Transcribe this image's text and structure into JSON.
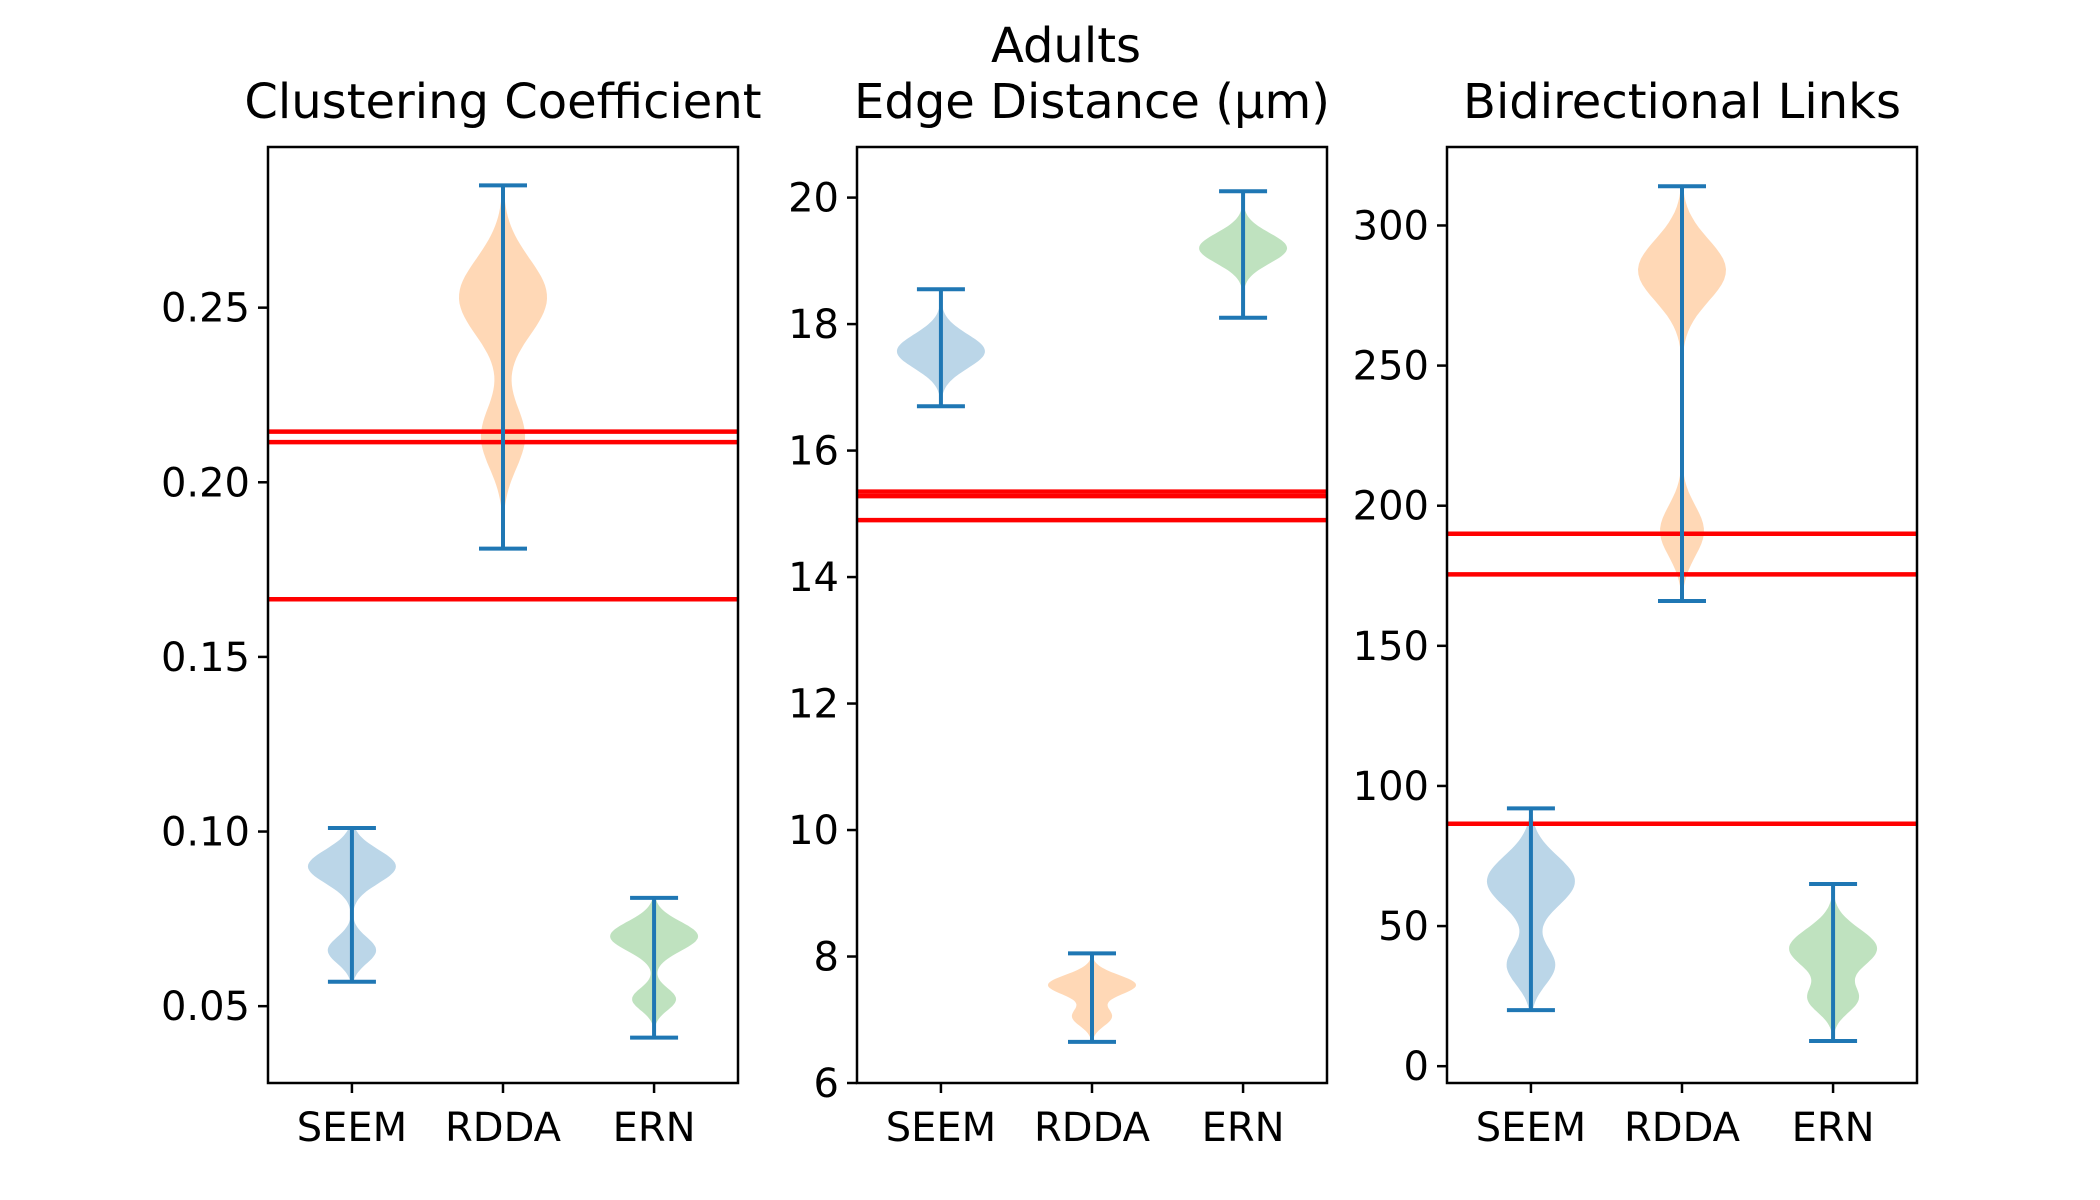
{
  "suptitle": "Adults",
  "colors": {
    "seem": "#1f77b4",
    "rdda": "#ff7f0e",
    "ern": "#2ca02c",
    "whisker": "#1f77b4",
    "reference": "#ff0000"
  },
  "chart_data": [
    {
      "type": "violin",
      "title": "Clustering Coefficient",
      "categories": [
        "SEEM",
        "RDDA",
        "ERN"
      ],
      "ylim": [
        0.028,
        0.296
      ],
      "yticks": [
        0.05,
        0.1,
        0.15,
        0.2,
        0.25
      ],
      "ytick_labels": [
        "0.05",
        "0.10",
        "0.15",
        "0.20",
        "0.25"
      ],
      "violins": [
        {
          "name": "SEEM",
          "min": 0.057,
          "max": 0.101,
          "mode_centers": [
            0.09,
            0.066
          ],
          "mode_widths": [
            0.0048,
            0.0038
          ],
          "mode_weights": [
            1.0,
            0.55
          ]
        },
        {
          "name": "RDDA",
          "min": 0.181,
          "max": 0.285,
          "mode_centers": [
            0.253,
            0.213
          ],
          "mode_widths": [
            0.011,
            0.009
          ],
          "mode_weights": [
            1.0,
            0.5
          ]
        },
        {
          "name": "ERN",
          "min": 0.041,
          "max": 0.081,
          "mode_centers": [
            0.07,
            0.052
          ],
          "mode_widths": [
            0.0042,
            0.0032
          ],
          "mode_weights": [
            1.0,
            0.5
          ]
        }
      ],
      "reference_lines": [
        0.2145,
        0.2115,
        0.1665
      ]
    },
    {
      "type": "violin",
      "title": "Edge Distance (μm)",
      "categories": [
        "SEEM",
        "RDDA",
        "ERN"
      ],
      "ylim": [
        6.0,
        20.8
      ],
      "yticks": [
        6,
        8,
        10,
        12,
        14,
        16,
        18,
        20
      ],
      "ytick_labels": [
        "6",
        "8",
        "10",
        "12",
        "14",
        "16",
        "18",
        "20"
      ],
      "violins": [
        {
          "name": "SEEM",
          "min": 16.7,
          "max": 18.55,
          "mode_centers": [
            17.57
          ],
          "mode_widths": [
            0.27
          ],
          "mode_weights": [
            1.0
          ]
        },
        {
          "name": "RDDA",
          "min": 6.65,
          "max": 8.05,
          "mode_centers": [
            7.55,
            7.05
          ],
          "mode_widths": [
            0.16,
            0.15
          ],
          "mode_weights": [
            1.0,
            0.45
          ]
        },
        {
          "name": "ERN",
          "min": 18.1,
          "max": 20.1,
          "mode_centers": [
            19.2
          ],
          "mode_widths": [
            0.24
          ],
          "mode_weights": [
            1.0
          ]
        }
      ],
      "reference_lines": [
        15.35,
        15.28,
        14.9
      ]
    },
    {
      "type": "violin",
      "title": "Bidirectional Links",
      "categories": [
        "SEEM",
        "RDDA",
        "ERN"
      ],
      "ylim": [
        -6,
        328
      ],
      "yticks": [
        0,
        50,
        100,
        150,
        200,
        250,
        300
      ],
      "ytick_labels": [
        "0",
        "50",
        "100",
        "150",
        "200",
        "250",
        "300"
      ],
      "violins": [
        {
          "name": "SEEM",
          "min": 20,
          "max": 92,
          "mode_centers": [
            66,
            36
          ],
          "mode_widths": [
            9,
            7
          ],
          "mode_weights": [
            1.0,
            0.55
          ]
        },
        {
          "name": "RDDA",
          "min": 166,
          "max": 314,
          "mode_centers": [
            284,
            191
          ],
          "mode_widths": [
            11,
            9
          ],
          "mode_weights": [
            1.0,
            0.5
          ]
        },
        {
          "name": "ERN",
          "min": 9,
          "max": 65,
          "mode_centers": [
            42,
            24
          ],
          "mode_widths": [
            7,
            5
          ],
          "mode_weights": [
            1.0,
            0.55
          ]
        }
      ],
      "reference_lines": [
        190,
        175.5,
        86.5
      ]
    }
  ]
}
